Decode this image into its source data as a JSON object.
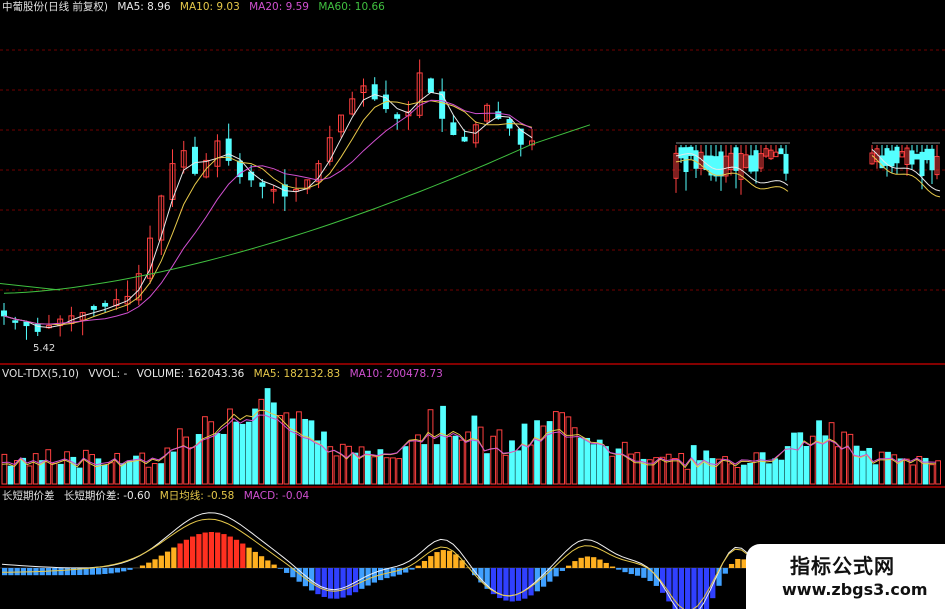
{
  "main_header": {
    "stock": "中葡股份(日线 前复权)",
    "ma5": "MA5: 8.96",
    "ma10": "MA10: 9.03",
    "ma20": "MA20: 9.59",
    "ma60": "MA60: 10.66"
  },
  "vol_header": {
    "name": "VOL-TDX(5,10)",
    "vvol": "VVOL: -",
    "volume": "VOLUME: 162043.36",
    "ma5": "MA5: 182132.83",
    "ma10": "MA10: 200478.73"
  },
  "ind_header": {
    "name": "长短期价差",
    "value1": "长短期价差: -0.60",
    "value2": "M日均线: -0.58",
    "macd": "MACD: -0.04"
  },
  "low_label": "5.42",
  "watermark": {
    "line1": "指标公式网",
    "line2": "www.zbgs3.com"
  },
  "colors": {
    "up": "#ff4040",
    "down": "#54ffff",
    "ma5": "#e8e8e8",
    "ma10": "#e6c84a",
    "ma20": "#d050d0",
    "ma60": "#40c040",
    "grid": "#700000",
    "separator": "#b00000"
  },
  "chart_data": [
    {
      "type": "candlestick",
      "title": "中葡股份(日线 前复权)",
      "series": [
        {
          "name": "MA5",
          "value": 8.96
        },
        {
          "name": "MA10",
          "value": 9.03
        },
        {
          "name": "MA20",
          "value": 9.59
        },
        {
          "name": "MA60",
          "value": 10.66
        }
      ],
      "annotations": [
        {
          "text": "5.42",
          "note": "period low"
        }
      ],
      "closes": [
        5.9,
        5.7,
        5.6,
        5.42,
        5.6,
        5.8,
        5.9,
        6.0,
        6.1,
        6.2,
        6.4,
        6.5,
        7.2,
        8.3,
        9.6,
        10.6,
        11.0,
        10.3,
        10.7,
        11.3,
        10.7,
        10.2,
        10.1,
        9.9,
        9.8,
        9.6,
        9.8,
        10.1,
        10.6,
        11.4,
        12.1,
        12.6,
        13.0,
        12.6,
        12.3,
        12.0,
        12.2,
        13.4,
        12.8,
        12.0,
        11.5,
        11.3,
        11.8,
        12.4,
        12.0,
        11.7,
        11.2,
        11.3
      ]
    },
    {
      "type": "bar",
      "title": "VOL-TDX(5,10)",
      "series": [
        {
          "name": "VOLUME",
          "value": 162043.36
        },
        {
          "name": "MA5",
          "value": 182132.83
        },
        {
          "name": "MA10",
          "value": 200478.73
        }
      ]
    },
    {
      "type": "bar",
      "title": "长短期价差",
      "series": [
        {
          "name": "长短期价差",
          "value": -0.6
        },
        {
          "name": "M日均线",
          "value": -0.58
        },
        {
          "name": "MACD",
          "value": -0.04
        }
      ]
    }
  ]
}
